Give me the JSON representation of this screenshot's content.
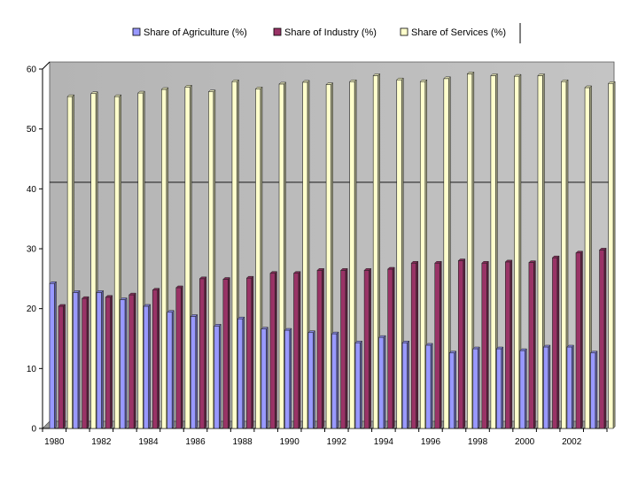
{
  "chart_data": {
    "type": "bar",
    "title": "",
    "xlabel": "",
    "ylabel": "",
    "ylim": [
      0,
      60
    ],
    "yticks": [
      0,
      10,
      20,
      30,
      40,
      50,
      60
    ],
    "grid": false,
    "reference_line": 40.5,
    "legend_position": "top",
    "categories": [
      "1980",
      "1981",
      "1982",
      "1983",
      "1984",
      "1985",
      "1986",
      "1987",
      "1988",
      "1989",
      "1990",
      "1991",
      "1992",
      "1993",
      "1994",
      "1995",
      "1996",
      "1997",
      "1998",
      "1999",
      "2000",
      "2001",
      "2002",
      "2003"
    ],
    "x_tick_labels": [
      "1980",
      "1982",
      "1984",
      "1986",
      "1988",
      "1990",
      "1992",
      "1994",
      "1996",
      "1998",
      "2000",
      "2002"
    ],
    "series": [
      {
        "name": "Share of Agriculture (%)",
        "color": "#9999ff",
        "values": [
          24.2,
          22.7,
          22.7,
          21.5,
          20.4,
          19.4,
          18.7,
          17.1,
          18.3,
          16.6,
          16.4,
          16.0,
          15.8,
          14.3,
          15.2,
          14.3,
          13.9,
          12.6,
          13.3,
          13.3,
          13.0,
          13.6,
          13.6,
          12.6
        ]
      },
      {
        "name": "Share of Industry (%)",
        "color": "#993366",
        "values": [
          20.4,
          21.7,
          21.9,
          22.3,
          23.1,
          23.5,
          25.0,
          24.9,
          25.1,
          25.9,
          25.9,
          26.4,
          26.4,
          26.4,
          26.6,
          27.6,
          27.6,
          28.0,
          27.6,
          27.8,
          27.7,
          28.5,
          29.3,
          29.8
        ]
      },
      {
        "name": "Share of Services (%)",
        "color": "#ffffcc",
        "values": [
          55.4,
          55.9,
          55.4,
          56.0,
          56.6,
          57.0,
          56.2,
          57.9,
          56.7,
          57.5,
          57.8,
          57.4,
          57.9,
          58.9,
          58.2,
          57.9,
          58.4,
          59.2,
          58.9,
          58.8,
          58.9,
          57.9,
          56.9,
          57.6
        ]
      }
    ]
  }
}
